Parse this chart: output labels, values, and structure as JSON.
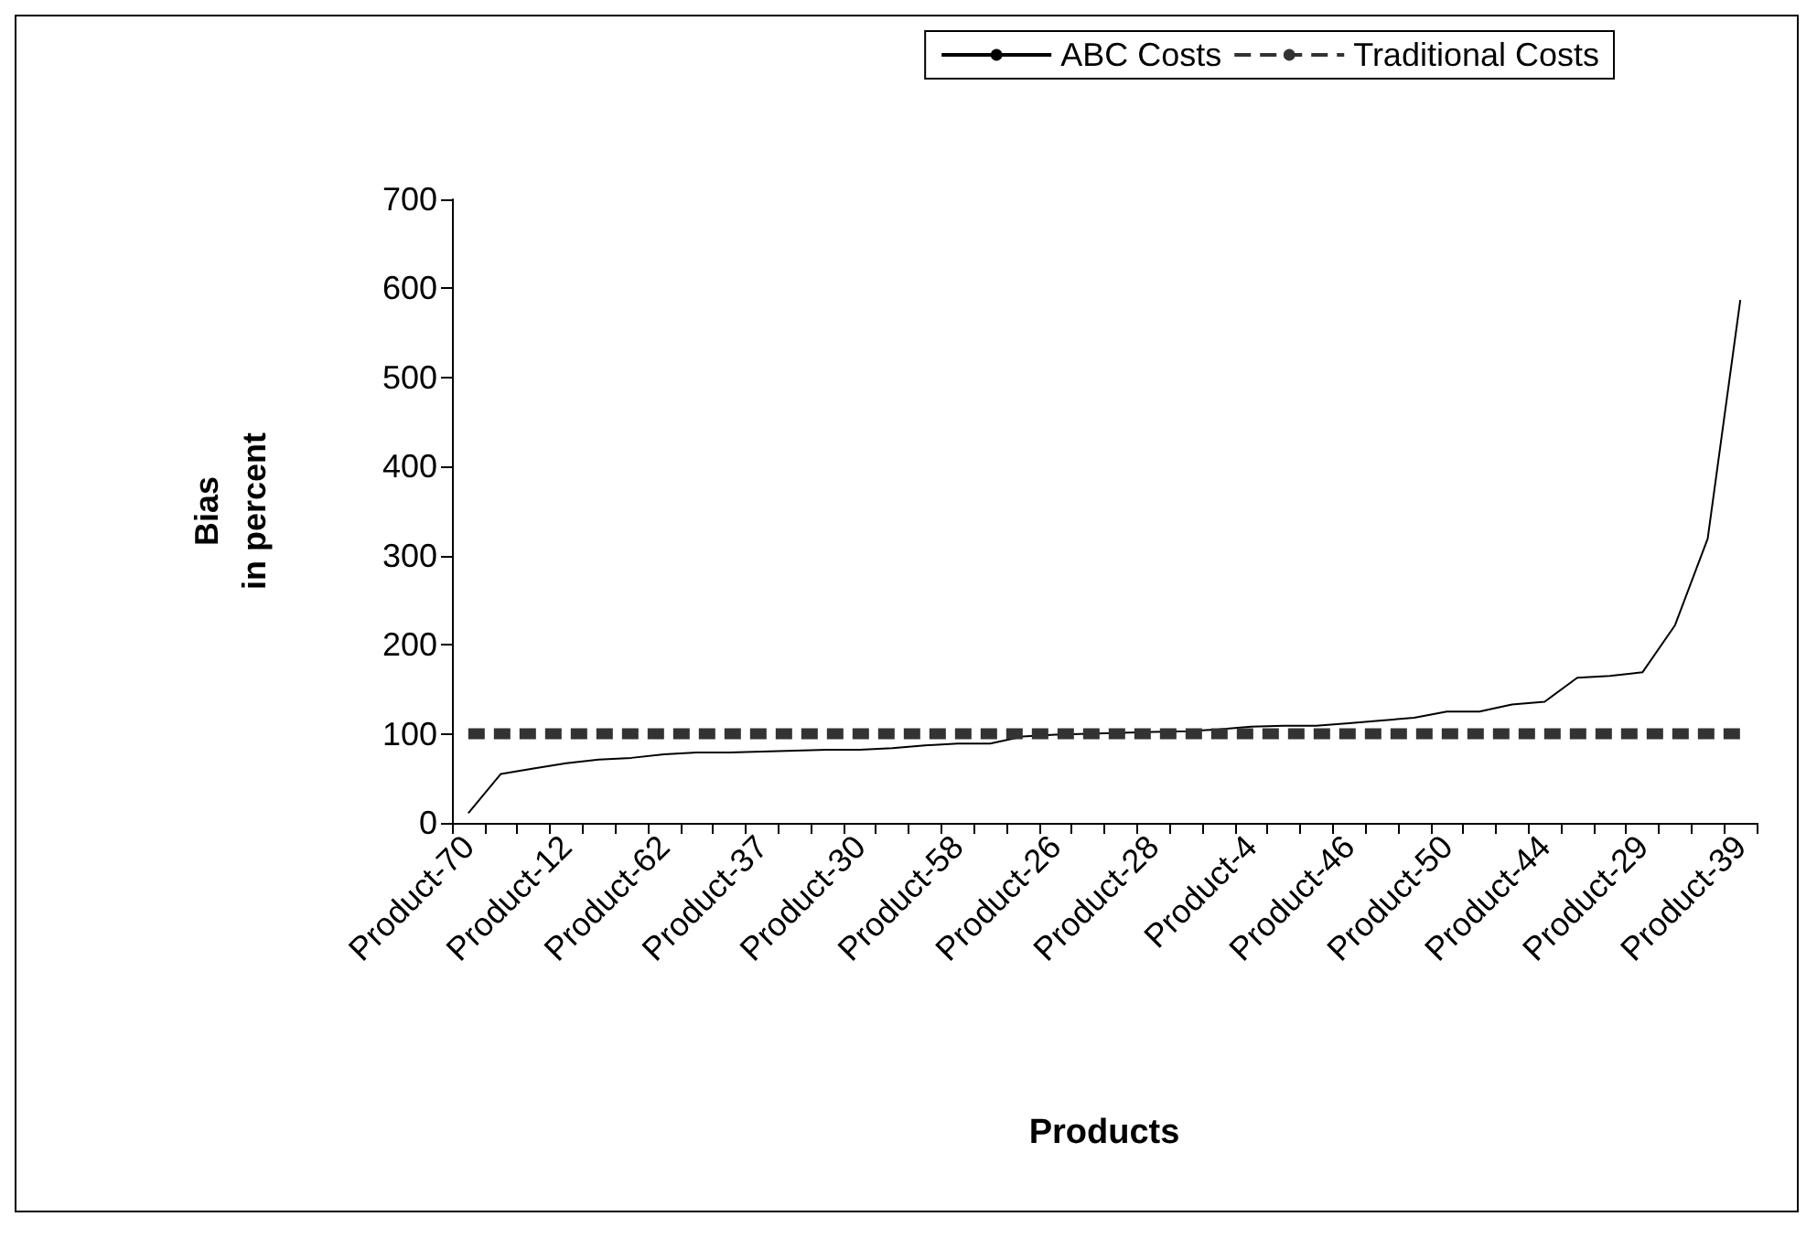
{
  "chart_data": {
    "type": "line",
    "xlabel": "Products",
    "ylabel": "Bias\nin percent",
    "categories": [
      "Product-70",
      null,
      null,
      "Product-12",
      null,
      null,
      "Product-62",
      null,
      null,
      "Product-37",
      null,
      null,
      "Product-30",
      null,
      null,
      "Product-58",
      null,
      null,
      "Product-26",
      null,
      null,
      "Product-28",
      null,
      null,
      "Product-4",
      null,
      null,
      "Product-46",
      null,
      null,
      "Product-50",
      null,
      null,
      "Product-44",
      null,
      null,
      "Product-29",
      null,
      null,
      "Product-39"
    ],
    "series": [
      {
        "name": "ABC Costs",
        "color": "#000000",
        "line_style": "solid",
        "values": [
          11,
          55,
          61,
          67,
          71,
          73,
          77,
          79,
          79,
          80,
          81,
          82,
          82,
          84,
          87,
          89,
          89,
          97,
          99,
          100,
          101,
          102,
          103,
          105,
          108,
          109,
          109,
          112,
          115,
          118,
          125,
          125,
          133,
          136,
          163,
          165,
          169,
          222,
          319,
          587
        ]
      },
      {
        "name": "Traditional Costs",
        "color": "#333333",
        "line_style": "dashed",
        "values": [
          100,
          100,
          100,
          100,
          100,
          100,
          100,
          100,
          100,
          100,
          100,
          100,
          100,
          100,
          100,
          100,
          100,
          100,
          100,
          100,
          100,
          100,
          100,
          100,
          100,
          100,
          100,
          100,
          100,
          100,
          100,
          100,
          100,
          100,
          100,
          100,
          100,
          100,
          100,
          100
        ]
      }
    ],
    "ylim": [
      0,
      700
    ],
    "yticks": [
      0,
      100,
      200,
      300,
      400,
      500,
      600,
      700
    ],
    "grid": false,
    "legend": "top right",
    "marker": "none"
  }
}
